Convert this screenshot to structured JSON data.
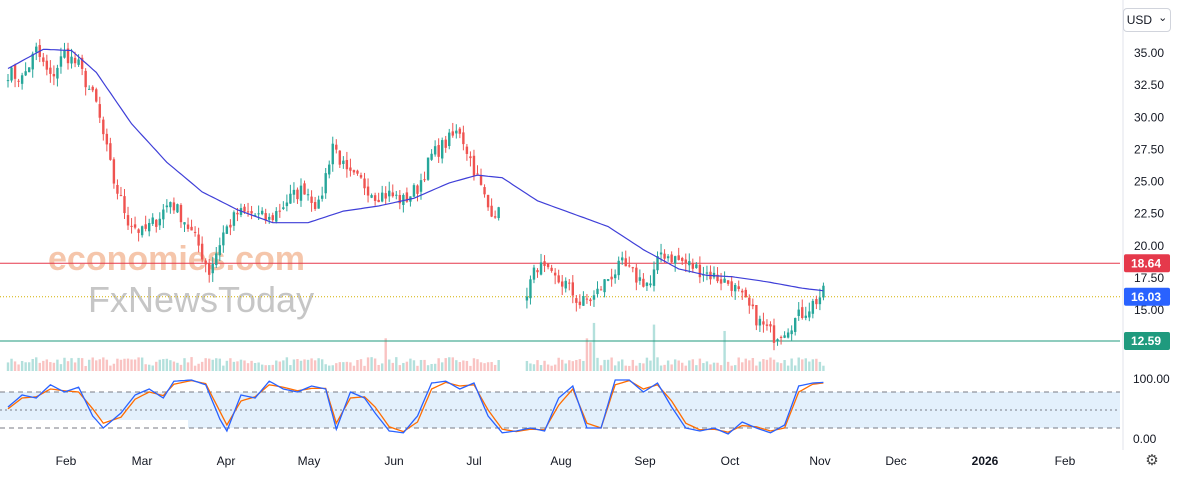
{
  "currency": "USD",
  "currency_chevron": "⌄",
  "settings_icon": "⚙",
  "watermark": {
    "line1": "economies.com",
    "line2": "FxNewsToday"
  },
  "colors": {
    "up": "#26a69a",
    "down": "#ef5350",
    "ma": "#3f3fd8",
    "resistance": "#e5394b",
    "support": "#1f9a7e",
    "stoch_k": "#2962ff",
    "stoch_d": "#ff6d00",
    "band": "#e3f0fc",
    "price_line": "#d4b000"
  },
  "chart_data": {
    "type": "candlestick",
    "title": "",
    "price_axis": {
      "min": 11.5,
      "max": 37.5,
      "ticks": [
        "35.00",
        "32.50",
        "30.00",
        "27.50",
        "25.00",
        "22.50",
        "20.00",
        "17.50",
        "15.00"
      ]
    },
    "time_axis": [
      "Feb",
      "Mar",
      "Apr",
      "May",
      "Jun",
      "Jul",
      "Aug",
      "Sep",
      "Oct",
      "Nov",
      "Dec",
      "2026",
      "Feb"
    ],
    "levels": [
      {
        "name": "resistance",
        "value": 18.64,
        "label": "18.64"
      },
      {
        "name": "current_price",
        "value": 16.03,
        "label": "16.03"
      },
      {
        "name": "support",
        "value": 12.59,
        "label": "12.59"
      }
    ],
    "price_anchors": [
      [
        0,
        33.5
      ],
      [
        4,
        33
      ],
      [
        8,
        35.2
      ],
      [
        12,
        33
      ],
      [
        16,
        35
      ],
      [
        20,
        34
      ],
      [
        25,
        31
      ],
      [
        30,
        25
      ],
      [
        34,
        22
      ],
      [
        38,
        21
      ],
      [
        42,
        22
      ],
      [
        46,
        23.5
      ],
      [
        50,
        22
      ],
      [
        54,
        20
      ],
      [
        57,
        18
      ],
      [
        61,
        21
      ],
      [
        65,
        22.5
      ],
      [
        69,
        22.5
      ],
      [
        74,
        22
      ],
      [
        79,
        23.5
      ],
      [
        84,
        24.5
      ],
      [
        88,
        23
      ],
      [
        92,
        28
      ],
      [
        96,
        25.5
      ],
      [
        100,
        25
      ],
      [
        104,
        24
      ],
      [
        108,
        24
      ],
      [
        112,
        23.5
      ],
      [
        116,
        24.5
      ],
      [
        120,
        27
      ],
      [
        124,
        28
      ],
      [
        128,
        29
      ],
      [
        132,
        26
      ],
      [
        136,
        23
      ],
      [
        139,
        22.5
      ],
      [
        142,
        null
      ],
      [
        143,
        null
      ],
      [
        144,
        null
      ],
      [
        145,
        null
      ],
      [
        146,
        null
      ],
      [
        147,
        16.5
      ],
      [
        150,
        18.5
      ],
      [
        154,
        17.5
      ],
      [
        158,
        17
      ],
      [
        162,
        15.5
      ],
      [
        166,
        16
      ],
      [
        170,
        17.5
      ],
      [
        174,
        18.5
      ],
      [
        178,
        17.5
      ],
      [
        182,
        17
      ],
      [
        185,
        19.5
      ],
      [
        189,
        19
      ],
      [
        193,
        18.5
      ],
      [
        197,
        18
      ],
      [
        201,
        17.5
      ],
      [
        205,
        17
      ],
      [
        209,
        15.5
      ],
      [
        213,
        14
      ],
      [
        217,
        13
      ],
      [
        220,
        13.5
      ],
      [
        224,
        14.5
      ],
      [
        228,
        15.5
      ],
      [
        231,
        16.3
      ]
    ],
    "ma_anchors": [
      [
        0,
        33.8
      ],
      [
        10,
        35.3
      ],
      [
        18,
        35.2
      ],
      [
        25,
        33.5
      ],
      [
        35,
        29.5
      ],
      [
        45,
        26.5
      ],
      [
        55,
        24.2
      ],
      [
        65,
        22.8
      ],
      [
        75,
        21.8
      ],
      [
        85,
        21.8
      ],
      [
        95,
        22.7
      ],
      [
        105,
        23.1
      ],
      [
        115,
        23.7
      ],
      [
        125,
        24.9
      ],
      [
        133,
        25.5
      ],
      [
        140,
        25.3
      ],
      [
        150,
        23.5
      ],
      [
        160,
        22.5
      ],
      [
        170,
        21.5
      ],
      [
        180,
        19.7
      ],
      [
        190,
        18.2
      ],
      [
        198,
        17.7
      ],
      [
        205,
        17.6
      ],
      [
        215,
        17.2
      ],
      [
        225,
        16.7
      ],
      [
        231,
        16.5
      ]
    ],
    "stochastic": {
      "axis_labels": [
        "100.00",
        "0.00"
      ],
      "upper": 80,
      "lower": 20,
      "mid": 50,
      "k_anchors": [
        [
          0,
          55
        ],
        [
          4,
          75
        ],
        [
          8,
          70
        ],
        [
          12,
          92
        ],
        [
          16,
          80
        ],
        [
          20,
          88
        ],
        [
          24,
          40
        ],
        [
          27,
          20
        ],
        [
          32,
          45
        ],
        [
          36,
          75
        ],
        [
          40,
          85
        ],
        [
          44,
          70
        ],
        [
          47,
          98
        ],
        [
          52,
          100
        ],
        [
          56,
          92
        ],
        [
          60,
          35
        ],
        [
          62,
          15
        ],
        [
          66,
          75
        ],
        [
          70,
          70
        ],
        [
          74,
          98
        ],
        [
          78,
          85
        ],
        [
          82,
          80
        ],
        [
          86,
          90
        ],
        [
          90,
          85
        ],
        [
          93,
          18
        ],
        [
          97,
          80
        ],
        [
          101,
          70
        ],
        [
          104,
          45
        ],
        [
          108,
          15
        ],
        [
          112,
          12
        ],
        [
          116,
          40
        ],
        [
          120,
          95
        ],
        [
          124,
          98
        ],
        [
          128,
          85
        ],
        [
          132,
          95
        ],
        [
          136,
          40
        ],
        [
          140,
          12
        ],
        [
          144,
          15
        ],
        [
          148,
          20
        ],
        [
          152,
          15
        ],
        [
          156,
          70
        ],
        [
          160,
          90
        ],
        [
          164,
          20
        ],
        [
          168,
          20
        ],
        [
          172,
          100
        ],
        [
          176,
          100
        ],
        [
          180,
          80
        ],
        [
          184,
          95
        ],
        [
          188,
          55
        ],
        [
          192,
          20
        ],
        [
          196,
          15
        ],
        [
          200,
          20
        ],
        [
          204,
          10
        ],
        [
          208,
          30
        ],
        [
          212,
          20
        ],
        [
          216,
          12
        ],
        [
          220,
          25
        ],
        [
          224,
          90
        ],
        [
          228,
          95
        ],
        [
          231,
          96
        ]
      ],
      "d_anchors": [
        [
          0,
          52
        ],
        [
          4,
          70
        ],
        [
          8,
          72
        ],
        [
          12,
          85
        ],
        [
          16,
          82
        ],
        [
          20,
          80
        ],
        [
          24,
          52
        ],
        [
          27,
          28
        ],
        [
          32,
          38
        ],
        [
          36,
          68
        ],
        [
          40,
          80
        ],
        [
          44,
          74
        ],
        [
          47,
          93
        ],
        [
          52,
          99
        ],
        [
          56,
          94
        ],
        [
          60,
          48
        ],
        [
          62,
          25
        ],
        [
          66,
          65
        ],
        [
          70,
          72
        ],
        [
          74,
          92
        ],
        [
          78,
          88
        ],
        [
          82,
          82
        ],
        [
          86,
          86
        ],
        [
          90,
          86
        ],
        [
          93,
          28
        ],
        [
          97,
          70
        ],
        [
          101,
          72
        ],
        [
          104,
          55
        ],
        [
          108,
          22
        ],
        [
          112,
          14
        ],
        [
          116,
          30
        ],
        [
          120,
          85
        ],
        [
          124,
          96
        ],
        [
          128,
          90
        ],
        [
          132,
          92
        ],
        [
          136,
          50
        ],
        [
          140,
          18
        ],
        [
          144,
          14
        ],
        [
          148,
          18
        ],
        [
          152,
          17
        ],
        [
          156,
          58
        ],
        [
          160,
          85
        ],
        [
          164,
          28
        ],
        [
          168,
          20
        ],
        [
          172,
          92
        ],
        [
          176,
          99
        ],
        [
          180,
          85
        ],
        [
          184,
          92
        ],
        [
          188,
          65
        ],
        [
          192,
          28
        ],
        [
          196,
          17
        ],
        [
          200,
          18
        ],
        [
          204,
          13
        ],
        [
          208,
          24
        ],
        [
          212,
          22
        ],
        [
          216,
          15
        ],
        [
          220,
          20
        ],
        [
          224,
          80
        ],
        [
          228,
          93
        ],
        [
          231,
          95
        ]
      ]
    }
  }
}
